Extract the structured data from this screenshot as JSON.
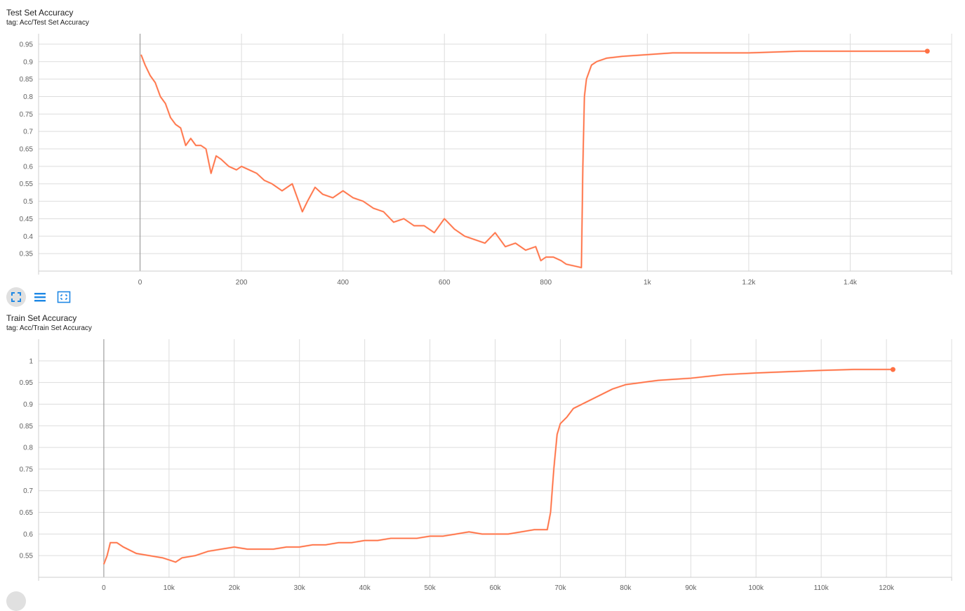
{
  "theme": {
    "line": "#ff7043",
    "line_raw": "#ffccbc",
    "grid": "#dddddd",
    "axis": "#cccccc",
    "zero": "#9e9e9e",
    "icon": "#1e88e5"
  },
  "toolbar": {
    "icons": [
      "fullscreen-icon",
      "list-icon",
      "fit-domain-icon"
    ]
  },
  "chart_data": [
    {
      "type": "line",
      "title": "Test Set Accuracy",
      "tag": "tag: Acc/Test Set Accuracy",
      "xlim": [
        -200,
        1600
      ],
      "ylim": [
        0.3,
        0.98
      ],
      "x_ticks": [
        0,
        200,
        400,
        600,
        800,
        1000,
        1200,
        1400
      ],
      "x_tick_labels": [
        "0",
        "200",
        "400",
        "600",
        "800",
        "1k",
        "1.2k",
        "1.4k"
      ],
      "y_ticks": [
        0.35,
        0.4,
        0.45,
        0.5,
        0.55,
        0.6,
        0.65,
        0.7,
        0.75,
        0.8,
        0.85,
        0.9,
        0.95
      ],
      "y_tick_labels": [
        "0.35",
        "0.4",
        "0.45",
        "0.5",
        "0.55",
        "0.6",
        "0.65",
        "0.7",
        "0.75",
        "0.8",
        "0.85",
        "0.9",
        "0.95"
      ],
      "grid": true,
      "series": [
        {
          "x": [
            2,
            10,
            20,
            30,
            40,
            50,
            60,
            70,
            80,
            90,
            100,
            110,
            120,
            130,
            140,
            150,
            160,
            175,
            190,
            200,
            215,
            230,
            245,
            260,
            280,
            300,
            320,
            330,
            345,
            360,
            380,
            400,
            420,
            440,
            460,
            480,
            500,
            520,
            540,
            560,
            580,
            600,
            620,
            640,
            660,
            680,
            700,
            720,
            740,
            760,
            780,
            790,
            800,
            815,
            830,
            840,
            870,
            873,
            876,
            880,
            890,
            900,
            920,
            950,
            1000,
            1050,
            1100,
            1200,
            1300,
            1400,
            1500,
            1552
          ],
          "y": [
            0.92,
            0.89,
            0.86,
            0.84,
            0.8,
            0.78,
            0.74,
            0.72,
            0.71,
            0.66,
            0.68,
            0.66,
            0.66,
            0.65,
            0.58,
            0.63,
            0.62,
            0.6,
            0.59,
            0.6,
            0.59,
            0.58,
            0.56,
            0.55,
            0.53,
            0.55,
            0.47,
            0.5,
            0.54,
            0.52,
            0.51,
            0.53,
            0.51,
            0.5,
            0.48,
            0.47,
            0.44,
            0.45,
            0.43,
            0.43,
            0.41,
            0.45,
            0.42,
            0.4,
            0.39,
            0.38,
            0.41,
            0.37,
            0.38,
            0.36,
            0.37,
            0.33,
            0.34,
            0.34,
            0.33,
            0.32,
            0.31,
            0.6,
            0.8,
            0.85,
            0.89,
            0.9,
            0.91,
            0.915,
            0.92,
            0.925,
            0.925,
            0.925,
            0.93,
            0.93,
            0.93,
            0.93
          ]
        }
      ]
    },
    {
      "type": "line",
      "title": "Train Set Accuracy",
      "tag": "tag: Acc/Train Set Accuracy",
      "xlim": [
        -10000,
        130000
      ],
      "ylim": [
        0.5,
        1.05
      ],
      "x_ticks": [
        0,
        10000,
        20000,
        30000,
        40000,
        50000,
        60000,
        70000,
        80000,
        90000,
        100000,
        110000,
        120000
      ],
      "x_tick_labels": [
        "0",
        "10k",
        "20k",
        "30k",
        "40k",
        "50k",
        "60k",
        "70k",
        "80k",
        "90k",
        "100k",
        "110k",
        "120k"
      ],
      "y_ticks": [
        0.55,
        0.6,
        0.65,
        0.7,
        0.75,
        0.8,
        0.85,
        0.9,
        0.95,
        1
      ],
      "y_tick_labels": [
        "0.55",
        "0.6",
        "0.65",
        "0.7",
        "0.75",
        "0.8",
        "0.85",
        "0.9",
        "0.95",
        "1"
      ],
      "grid": true,
      "series": [
        {
          "x": [
            0,
            500,
            1000,
            2000,
            3000,
            5000,
            7000,
            9000,
            10000,
            11000,
            12000,
            14000,
            16000,
            18000,
            20000,
            22000,
            24000,
            26000,
            28000,
            30000,
            32000,
            34000,
            36000,
            38000,
            40000,
            42000,
            44000,
            46000,
            48000,
            50000,
            52000,
            54000,
            56000,
            58000,
            60000,
            62000,
            64000,
            66000,
            68000,
            68500,
            69000,
            69500,
            70000,
            71000,
            72000,
            74000,
            76000,
            78000,
            80000,
            85000,
            90000,
            95000,
            100000,
            105000,
            110000,
            115000,
            120000,
            121000
          ],
          "y": [
            0.53,
            0.55,
            0.58,
            0.58,
            0.57,
            0.555,
            0.55,
            0.545,
            0.54,
            0.535,
            0.545,
            0.55,
            0.56,
            0.565,
            0.57,
            0.565,
            0.565,
            0.565,
            0.57,
            0.57,
            0.575,
            0.575,
            0.58,
            0.58,
            0.585,
            0.585,
            0.59,
            0.59,
            0.59,
            0.595,
            0.595,
            0.6,
            0.605,
            0.6,
            0.6,
            0.6,
            0.605,
            0.61,
            0.61,
            0.65,
            0.75,
            0.83,
            0.855,
            0.87,
            0.89,
            0.905,
            0.92,
            0.935,
            0.945,
            0.955,
            0.96,
            0.968,
            0.972,
            0.975,
            0.978,
            0.98,
            0.98,
            0.98
          ]
        }
      ]
    }
  ]
}
